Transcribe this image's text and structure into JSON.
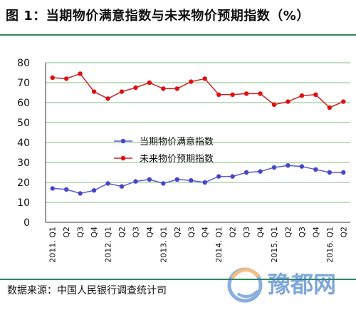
{
  "title": "图 1：当期物价满意指数与未来物价预期指数（%）",
  "source": "数据来源：中国人民银行调查统计司",
  "watermark": "豫都网",
  "chart_data": {
    "type": "line",
    "categories": [
      "2011. Q1",
      "Q2",
      "Q3",
      "Q4",
      "2012. Q1",
      "Q2",
      "Q3",
      "Q4",
      "2013. Q1",
      "Q2",
      "Q3",
      "Q4",
      "2014. Q1",
      "Q2",
      "Q3",
      "Q4",
      "2015. Q1",
      "Q2",
      "Q3",
      "Q4",
      "2016. Q1",
      "Q2"
    ],
    "series": [
      {
        "name": "当期物价满意指数",
        "color": "#5b5bd6",
        "marker_color": "#4646c8",
        "values": [
          17,
          16.5,
          14.5,
          16,
          19.5,
          18,
          20.5,
          21.5,
          19.5,
          21.5,
          21,
          20,
          23,
          23,
          25,
          25.5,
          27.5,
          28.5,
          28,
          26.5,
          25,
          25
        ]
      },
      {
        "name": "未来物价预期指数",
        "color": "#cc2222",
        "marker_color": "#dd1111",
        "values": [
          72.5,
          72,
          74.5,
          65.5,
          62,
          65.5,
          67.5,
          70,
          67,
          67,
          70.5,
          72,
          64,
          64,
          64.5,
          64.5,
          59,
          60.5,
          63.5,
          64,
          57.5,
          60.5
        ]
      }
    ],
    "y_ticks": [
      0,
      10,
      20,
      30,
      40,
      50,
      60,
      70,
      80
    ],
    "ylim": [
      0,
      80
    ],
    "legend": "middle-left",
    "grid": "horizontal, green"
  }
}
